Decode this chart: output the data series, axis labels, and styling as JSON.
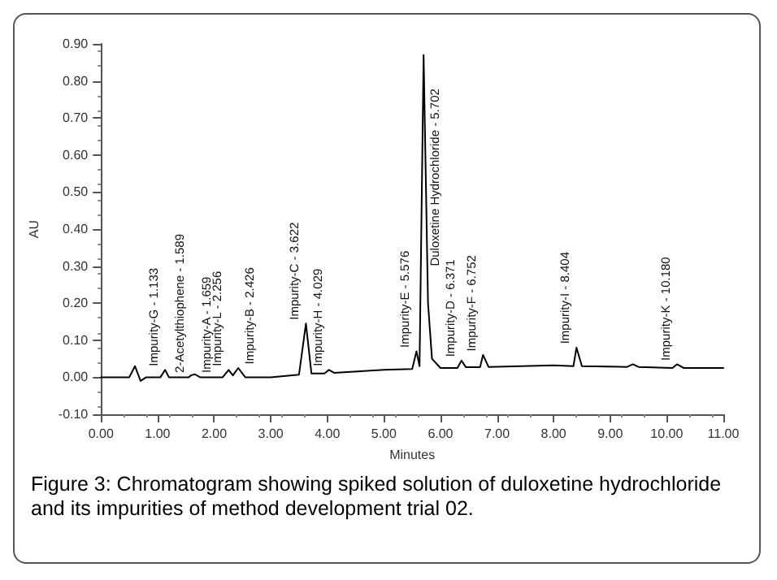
{
  "chart_data": {
    "type": "line",
    "xlabel": "Minutes",
    "ylabel": "AU",
    "color": "#000000",
    "x": [
      0,
      0.5,
      0.6,
      0.65,
      0.7,
      0.8,
      1.05,
      1.133,
      1.2,
      1.55,
      1.589,
      1.659,
      1.75,
      2.15,
      2.256,
      2.33,
      2.426,
      2.55,
      3.0,
      3.5,
      3.622,
      3.72,
      3.95,
      4.029,
      4.12,
      5.0,
      5.5,
      5.576,
      5.63,
      5.702,
      5.78,
      5.85,
      6.0,
      6.3,
      6.371,
      6.45,
      6.7,
      6.752,
      6.85,
      8.0,
      8.35,
      8.404,
      8.5,
      9.3,
      9.4,
      9.5,
      10.1,
      10.18,
      10.3,
      11
    ],
    "values": [
      0,
      0,
      0.03,
      0.01,
      -0.01,
      0,
      0,
      0.02,
      0,
      0,
      0.005,
      0.008,
      0,
      0,
      0.02,
      0.005,
      0.025,
      0,
      0,
      0.007,
      0.145,
      0.01,
      0.01,
      0.02,
      0.012,
      0.02,
      0.022,
      0.07,
      0.03,
      0.87,
      0.2,
      0.05,
      0.025,
      0.025,
      0.045,
      0.027,
      0.027,
      0.06,
      0.028,
      0.032,
      0.03,
      0.08,
      0.03,
      0.028,
      0.035,
      0.028,
      0.025,
      0.035,
      0.025,
      0.025
    ],
    "xlim": [
      0,
      11
    ],
    "xticks": [
      {
        "value": 0,
        "label": "0.00"
      },
      {
        "value": 1,
        "label": "1.00"
      },
      {
        "value": 2,
        "label": "2.00"
      },
      {
        "value": 3,
        "label": "3.00"
      },
      {
        "value": 4,
        "label": "4.00"
      },
      {
        "value": 5,
        "label": "5.00"
      },
      {
        "value": 6,
        "label": "6.00"
      },
      {
        "value": 7,
        "label": "7.00"
      },
      {
        "value": 8,
        "label": "8.00"
      },
      {
        "value": 9,
        "label": "9.00"
      },
      {
        "value": 10,
        "label": "10.00"
      },
      {
        "value": 11,
        "label": "11.00"
      }
    ],
    "ylim": [
      -0.1,
      0.9
    ],
    "yticks": [
      {
        "value": -0.1,
        "label": "-0.10"
      },
      {
        "value": 0,
        "label": "0.00"
      },
      {
        "value": 0.1,
        "label": "0.10"
      },
      {
        "value": 0.2,
        "label": "0.20"
      },
      {
        "value": 0.3,
        "label": "0.30"
      },
      {
        "value": 0.4,
        "label": "0.40"
      },
      {
        "value": 0.5,
        "label": "0.50"
      },
      {
        "value": 0.6,
        "label": "0.60"
      },
      {
        "value": 0.7,
        "label": "0.70"
      },
      {
        "value": 0.8,
        "label": "0.80"
      },
      {
        "value": 0.9,
        "label": "0.90"
      }
    ],
    "marker": "none",
    "line_style": "solid",
    "annotations": [
      {
        "text": "Impurity-G - 1.133",
        "x": 1.133,
        "y": 0.03
      },
      {
        "text": "2-Acetylthiophene - 1.589",
        "x": 1.589,
        "y": 0.012
      },
      {
        "text": "Impurity-A - 1.659",
        "x": 1.659,
        "y": 0.012
      },
      {
        "text": "Impurity-L - 2.256",
        "x": 2.256,
        "y": 0.03
      },
      {
        "text": "Impurity-B - 2.426",
        "x": 2.426,
        "y": 0.035
      },
      {
        "text": "Impurity-C - 3.622",
        "x": 3.622,
        "y": 0.155
      },
      {
        "text": "Impurity-H - 4.029",
        "x": 4.029,
        "y": 0.03
      },
      {
        "text": "Impurity-E - 5.576",
        "x": 5.576,
        "y": 0.08
      },
      {
        "text": "Duloxetine Hydrochloride - 5.702",
        "x": 5.702,
        "y": 0.3
      },
      {
        "text": "Impurity-D - 6.371",
        "x": 6.371,
        "y": 0.055
      },
      {
        "text": "Impurity-F - 6.752",
        "x": 6.752,
        "y": 0.07
      },
      {
        "text": "Impurity-I - 8.404",
        "x": 8.404,
        "y": 0.09
      },
      {
        "text": "Impurity-K - 10.180",
        "x": 10.18,
        "y": 0.045
      },
      "Figure 3: Chromatogram showing spiked solution of duloxetine hydrochloride and its impurities of method development trial 02."
    ]
  }
}
